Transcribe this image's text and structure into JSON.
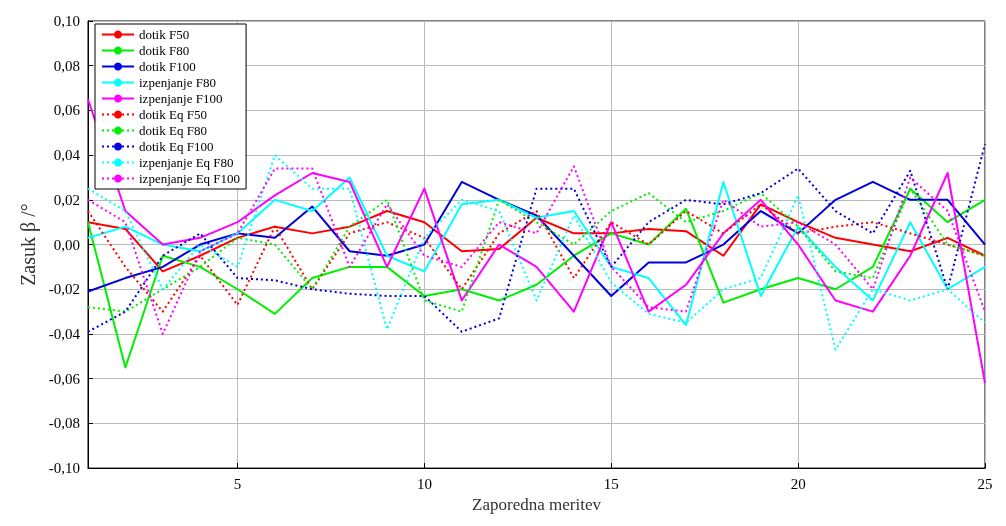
{
  "chart_data": {
    "type": "line",
    "xlabel": "Zaporedna meritev",
    "ylabel": "Zasuk β /°",
    "x": [
      1,
      2,
      3,
      4,
      5,
      6,
      7,
      8,
      9,
      10,
      11,
      12,
      13,
      14,
      15,
      16,
      17,
      18,
      19,
      20,
      21,
      22,
      23,
      24,
      25
    ],
    "xlim": [
      1,
      25
    ],
    "xticks": [
      5,
      10,
      15,
      20,
      25
    ],
    "ylim": [
      -0.1,
      0.1
    ],
    "yticks": [
      {
        "value": -0.1,
        "label": "-0,10"
      },
      {
        "value": -0.08,
        "label": "-0,08"
      },
      {
        "value": -0.06,
        "label": "-0,06"
      },
      {
        "value": -0.04,
        "label": "-0,04"
      },
      {
        "value": -0.02,
        "label": "-0,02"
      },
      {
        "value": 0,
        "label": "0,00"
      },
      {
        "value": 0.02,
        "label": "0,02"
      },
      {
        "value": 0.04,
        "label": "0,04"
      },
      {
        "value": 0.06,
        "label": "0,06"
      },
      {
        "value": 0.08,
        "label": "0,08"
      },
      {
        "value": 0.1,
        "label": "0,10"
      }
    ],
    "grid": true,
    "legend": "top left",
    "marker": "none",
    "series": [
      {
        "name": "dotik F50",
        "color": "#ff0000",
        "line_style": "solid",
        "values": [
          0.01,
          0.007,
          -0.012,
          -0.005,
          0.003,
          0.008,
          0.005,
          0.008,
          0.015,
          0.01,
          -0.003,
          -0.002,
          0.012,
          0.005,
          0.005,
          0.007,
          0.006,
          -0.005,
          0.018,
          0.01,
          0.003,
          0.0,
          -0.003,
          0.003,
          -0.005
        ]
      },
      {
        "name": "dotik F80",
        "color": "#00ee00",
        "line_style": "solid",
        "values": [
          0.01,
          -0.055,
          -0.005,
          -0.01,
          -0.02,
          -0.031,
          -0.015,
          -0.01,
          -0.01,
          -0.023,
          -0.02,
          -0.025,
          -0.018,
          -0.005,
          0.005,
          0.0,
          0.016,
          -0.026,
          -0.02,
          -0.015,
          -0.02,
          -0.01,
          0.025,
          0.01,
          0.02
        ]
      },
      {
        "name": "dotik F100",
        "color": "#0000dd",
        "line_style": "solid",
        "values": [
          -0.021,
          -0.015,
          -0.01,
          0.0,
          0.005,
          0.003,
          0.017,
          -0.003,
          -0.005,
          0.0,
          0.028,
          0.02,
          0.013,
          -0.005,
          -0.023,
          -0.008,
          -0.008,
          0.0,
          0.015,
          0.005,
          0.02,
          0.028,
          0.02,
          0.02,
          0.0
        ]
      },
      {
        "name": "izpenjanje F80",
        "color": "#00ffff",
        "line_style": "solid",
        "values": [
          0.003,
          0.008,
          0.0,
          -0.003,
          0.005,
          0.02,
          0.015,
          0.03,
          -0.005,
          -0.012,
          0.018,
          0.02,
          0.012,
          0.015,
          -0.01,
          -0.015,
          -0.036,
          0.028,
          -0.023,
          0.008,
          -0.01,
          -0.025,
          0.01,
          -0.02,
          -0.01
        ]
      },
      {
        "name": "izpenjanje F100",
        "color": "#ff00ff",
        "line_style": "solid",
        "values": [
          0.065,
          0.015,
          0.0,
          0.003,
          0.01,
          0.022,
          0.032,
          0.028,
          -0.01,
          0.025,
          -0.025,
          0.0,
          -0.01,
          -0.03,
          0.01,
          -0.03,
          -0.018,
          0.005,
          0.02,
          0.0,
          -0.025,
          -0.03,
          -0.005,
          0.032,
          -0.062
        ]
      },
      {
        "name": "dotik Eq F50",
        "color": "#ff0000",
        "line_style": "dotted",
        "values": [
          0.015,
          -0.01,
          -0.03,
          -0.005,
          -0.027,
          0.008,
          -0.02,
          0.005,
          0.01,
          0.003,
          -0.02,
          0.005,
          0.015,
          -0.015,
          0.01,
          0.0,
          0.015,
          0.005,
          0.018,
          0.005,
          0.008,
          0.01,
          0.005,
          0.0,
          -0.005
        ]
      },
      {
        "name": "dotik Eq F80",
        "color": "#00ee00",
        "line_style": "dotted",
        "values": [
          -0.028,
          -0.03,
          -0.02,
          -0.01,
          0.003,
          0.0,
          -0.02,
          0.008,
          0.02,
          -0.025,
          -0.03,
          0.02,
          0.01,
          0.0,
          0.015,
          0.023,
          0.01,
          0.015,
          0.023,
          0.008,
          -0.012,
          -0.015,
          0.025,
          0.0,
          -0.005
        ]
      },
      {
        "name": "dotik Eq F100",
        "color": "#0000dd",
        "line_style": "dotted",
        "values": [
          -0.039,
          -0.03,
          -0.005,
          0.005,
          -0.015,
          -0.016,
          -0.02,
          -0.022,
          -0.023,
          -0.023,
          -0.039,
          -0.033,
          0.025,
          0.025,
          -0.01,
          0.01,
          0.02,
          0.018,
          0.023,
          0.034,
          0.015,
          0.005,
          0.033,
          -0.02,
          0.045
        ]
      },
      {
        "name": "izpenjanje Eq F80",
        "color": "#00ffff",
        "line_style": "dotted",
        "values": [
          0.025,
          0.015,
          -0.02,
          0.0,
          -0.01,
          0.04,
          0.025,
          0.025,
          -0.038,
          0.003,
          0.02,
          0.015,
          -0.025,
          0.013,
          -0.017,
          -0.031,
          -0.035,
          -0.02,
          -0.015,
          0.022,
          -0.047,
          -0.02,
          -0.025,
          -0.02,
          -0.035
        ]
      },
      {
        "name": "izpenjanje Eq F100",
        "color": "#ff00ff",
        "line_style": "dotted",
        "values": [
          0.02,
          0.01,
          -0.04,
          -0.003,
          0.005,
          0.034,
          0.034,
          -0.01,
          0.018,
          -0.005,
          -0.01,
          0.01,
          0.005,
          0.035,
          -0.01,
          -0.028,
          -0.03,
          0.02,
          0.008,
          0.01,
          0.0,
          -0.02,
          0.03,
          0.015,
          -0.03
        ]
      }
    ]
  }
}
